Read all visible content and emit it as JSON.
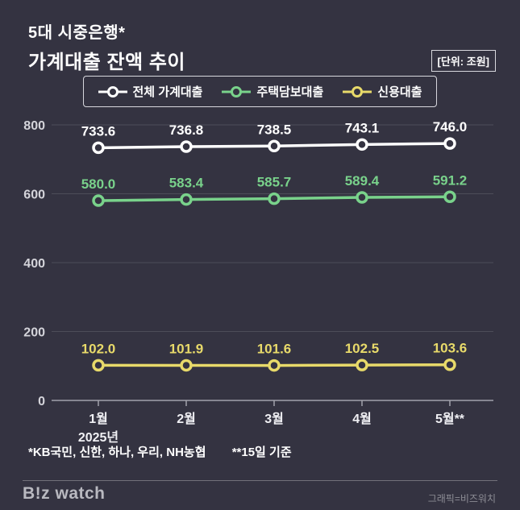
{
  "header": {
    "title_line1": "5대 시중은행*",
    "title_line2": "가계대출 잔액 추이",
    "unit_label": "[단위: 조원]"
  },
  "chart_data": {
    "type": "line",
    "title": "가계대출 잔액 추이",
    "unit": "조원",
    "categories": [
      "1월",
      "2월",
      "3월",
      "4월",
      "5월**"
    ],
    "x_sub_label": "2025년",
    "series": [
      {
        "name": "전체 가계대출",
        "color": "#ffffff",
        "values": [
          733.6,
          736.8,
          738.5,
          743.1,
          746.0
        ]
      },
      {
        "name": "주택담보대출",
        "color": "#79d28b",
        "values": [
          580.0,
          583.4,
          585.7,
          589.4,
          591.2
        ]
      },
      {
        "name": "신용대출",
        "color": "#e8da6a",
        "values": [
          102.0,
          101.9,
          101.6,
          102.5,
          103.6
        ]
      }
    ],
    "ylim": [
      0,
      800
    ],
    "yticks": [
      0,
      200,
      400,
      600,
      800
    ],
    "grid": true,
    "legend_position": "top"
  },
  "footnotes": [
    "*KB국민, 신한, 하나, 우리, NH농협",
    "**15일 기준"
  ],
  "footer": {
    "logo": "B!z watch",
    "credit": "그래픽=비즈워치"
  }
}
